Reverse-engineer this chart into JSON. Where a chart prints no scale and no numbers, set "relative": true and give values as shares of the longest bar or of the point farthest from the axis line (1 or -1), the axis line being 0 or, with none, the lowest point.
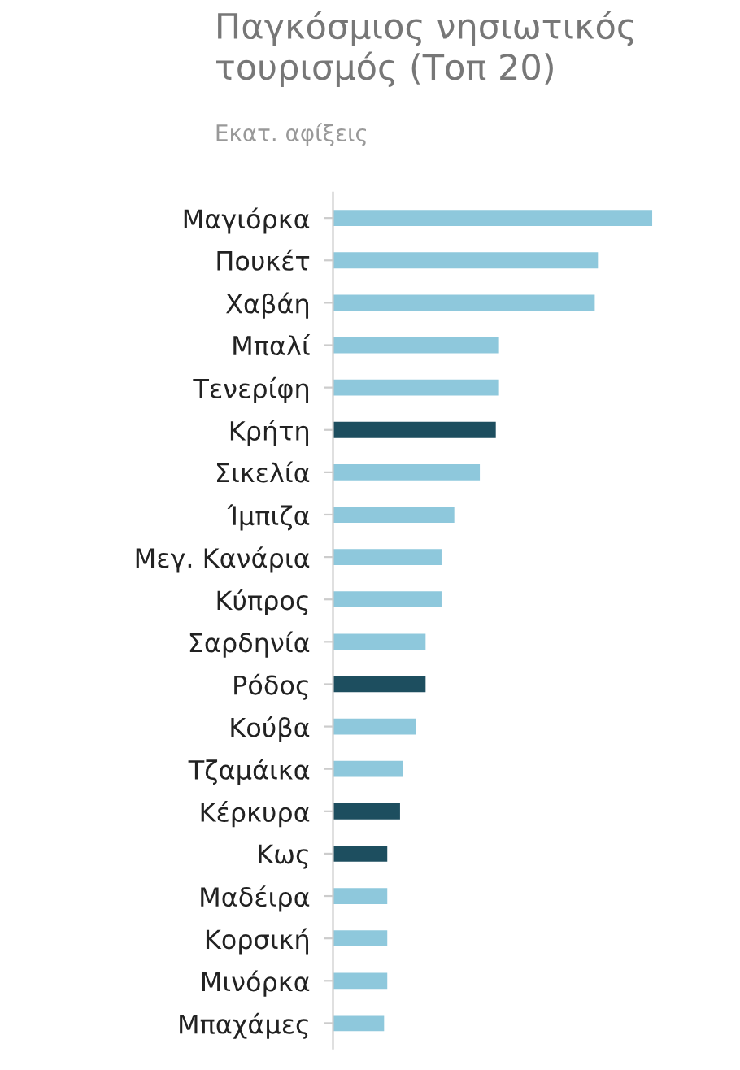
{
  "chart_data": {
    "type": "bar",
    "orientation": "horizontal",
    "relative": true,
    "title": "Παγκόσμιος νησιωτικός τουρισμός (Τοπ 20)",
    "subtitle": "Εκατ. αφίξεις",
    "categories": [
      "Μαγιόρκα",
      "Πουκέτ",
      "Χαβάη",
      "Μπαλί",
      "Τενερίφη",
      "Κρήτη",
      "Σικελία",
      "Ίμπιζα",
      "Μεγ. Κανάρια",
      "Κύπρος",
      "Σαρδηνία",
      "Ρόδος",
      "Κούβα",
      "Τζαμάικα",
      "Κέρκυρα",
      "Κως",
      "Μαδέιρα",
      "Κορσική",
      "Μινόρκα",
      "Μπαχάμες"
    ],
    "values": [
      1,
      0.83,
      0.82,
      0.52,
      0.52,
      0.51,
      0.46,
      0.38,
      0.34,
      0.34,
      0.29,
      0.29,
      0.26,
      0.22,
      0.21,
      0.17,
      0.17,
      0.17,
      0.17,
      0.16
    ],
    "colors": [
      "#8ec8dc",
      "#8ec8dc",
      "#8ec8dc",
      "#8ec8dc",
      "#8ec8dc",
      "#1d4e5f",
      "#8ec8dc",
      "#8ec8dc",
      "#8ec8dc",
      "#8ec8dc",
      "#8ec8dc",
      "#1d4e5f",
      "#8ec8dc",
      "#8ec8dc",
      "#1d4e5f",
      "#1d4e5f",
      "#8ec8dc",
      "#8ec8dc",
      "#8ec8dc",
      "#8ec8dc"
    ],
    "grid": false,
    "legend": false
  }
}
